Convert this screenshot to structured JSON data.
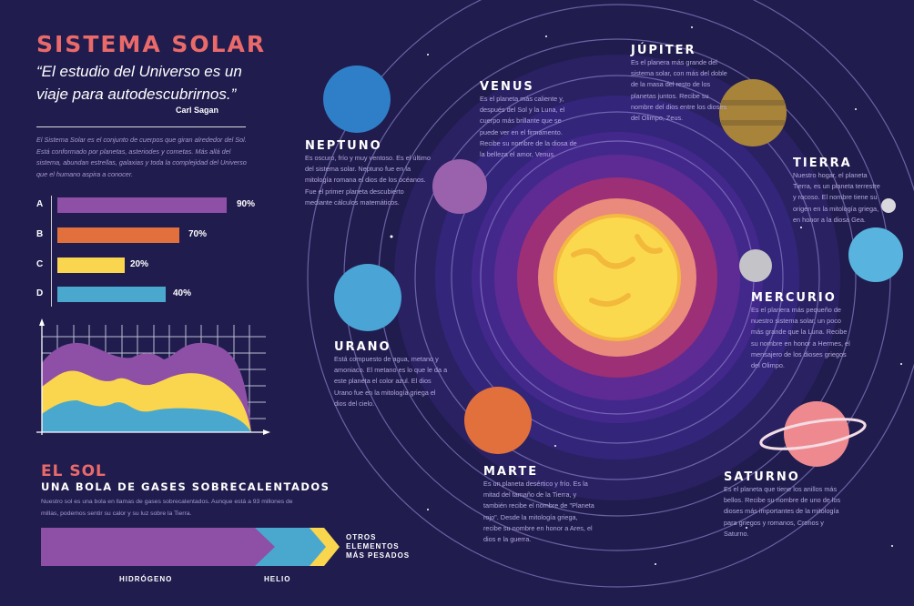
{
  "header": {
    "title": "SISTEMA SOLAR",
    "quote": "“El estudio del Universo es un viaje para autodescubrirnos.”",
    "author": "Carl Sagan",
    "intro": "El Sistema Solar es el conjunto de cuerpos que giran alrededor del Sol. Está conformado por planetas, asteriodes y cometas. Más allá del sistema, abundan estrellas, galaxias y toda la complejidad del Universo que el humano aspira a conocer."
  },
  "bars": [
    {
      "label": "A",
      "value": "90%",
      "color": "#8e4fa6"
    },
    {
      "label": "B",
      "value": "70%",
      "color": "#e2703c"
    },
    {
      "label": "C",
      "value": "20%",
      "color": "#fad54e"
    },
    {
      "label": "D",
      "value": "40%",
      "color": "#4aa8cf"
    }
  ],
  "area_chart_colors": [
    "#8e4fa6",
    "#fad54e",
    "#4aa8cf"
  ],
  "sun_section": {
    "title": "EL SOL",
    "subtitle": "UNA BOLA DE GASES SOBRECALENTADOS",
    "description": "Nuestro sol es una bola en llamas de gases sobrecalentados. Aunque está a 93 millones de millas, podemos sentir su calor y su luz sobre la Tierra.",
    "composition": [
      {
        "label": "HIDRÓGENO",
        "color": "#8e4fa6"
      },
      {
        "label": "HELIO",
        "color": "#4aa8cf"
      },
      {
        "label": "OTROS ELEMENTOS MÁS PESADOS",
        "color": "#fad54e"
      }
    ]
  },
  "planets": {
    "neptuno": {
      "name": "NEPTUNO",
      "desc": "Es oscuro, frío y muy ventoso. Es el último del sistema solar. Neptuno fue en la mitología romana el dios de los océanos. Fue el primer planeta descubierto mediante cálculos matemáticos."
    },
    "venus": {
      "name": "VENUS",
      "desc": "Es el planeta más caliente y, después del Sol y la Luna, el cuerpo más brillante que se puede ver en el firmamento. Recibe su nombre de la diosa de la belleza el amor, Venus."
    },
    "jupiter": {
      "name": "JÚPITER",
      "desc": "Es el planera más grande del sistema solar, con más del doble de la masa del resto de los planetas juntos. Recibe su nombre del dios entre los dioses del Olimpo, Zeus."
    },
    "tierra": {
      "name": "TIERRA",
      "desc": "Nuestro hogar, el planeta Tierra, es un planeta terrestre y rocoso. El nombre tiene su origen en la mitología griega, en honor a la diosa Gea."
    },
    "mercurio": {
      "name": "MERCURIO",
      "desc": "Es el planera más pequeño de nuestro sistema solar, un poco más grande que la Luna. Recibe su nombre en honor a Hermes, el mensajero de los dioses griegos del Olimpo."
    },
    "urano": {
      "name": "URANO",
      "desc": "Está compuesto de agua, metano y amoniaco. El metano es lo que le da a este planeta el color azul. El dios Urano fue en la mitología griega el dios del cielo."
    },
    "marte": {
      "name": "MARTE",
      "desc": "Es un planeta desértico y frío. Es la mitad del tamaño de la Tierra, y también recibe el nombre de \"Planeta rojo\". Desde la mitología griega, recibe su nombre en honor a Ares, el dios e la guerra."
    },
    "saturno": {
      "name": "SATURNO",
      "desc": "Es el planeta que tiene los anillos más bellos. Recibe su nombre de uno de los dioses más importantes de la mitología para griegos y romanos, Cronos y Saturno."
    }
  }
}
